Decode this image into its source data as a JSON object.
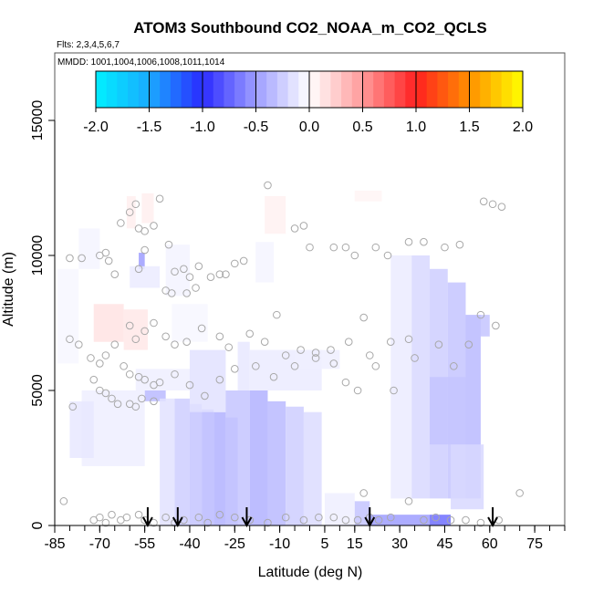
{
  "chart_data": {
    "type": "heatmap",
    "title": "ATOM3 Southbound CO2_NOAA_m_CO2_QCLS",
    "subtitle_flights": "Flts: 2,3,4,5,6,7",
    "subtitle_dates": "MMDD: 1001,1004,1006,1008,1011,1014",
    "xlabel": "Latitude (deg N)",
    "ylabel": "Altitude (m)",
    "xlim": [
      -85,
      85
    ],
    "ylim": [
      0,
      17500
    ],
    "x_ticks": [
      -85,
      -70,
      -55,
      -40,
      -25,
      -10,
      5,
      15,
      30,
      45,
      60,
      75
    ],
    "x_tick_labels": [
      "-85",
      "-70",
      "-55",
      "-40",
      "-25",
      "-10",
      "5",
      "15",
      "30",
      "45",
      "60",
      "75"
    ],
    "x_minor_step": 5,
    "y_ticks": [
      0,
      5000,
      10000,
      15000
    ],
    "y_tick_labels": [
      "0",
      "5000",
      "10000",
      "15000"
    ],
    "colorbar": {
      "range": [
        -2.0,
        2.0
      ],
      "ticks": [
        -2.0,
        -1.5,
        -1.0,
        -0.5,
        0.0,
        0.5,
        1.0,
        1.5,
        2.0
      ],
      "tick_labels": [
        "-2.0",
        "-1.5",
        "-1.0",
        "-0.5",
        "0.0",
        "0.5",
        "1.0",
        "1.5",
        "2.0"
      ],
      "stops": [
        {
          "v": -2.0,
          "color": "#00f0ff"
        },
        {
          "v": -1.5,
          "color": "#1aaaff"
        },
        {
          "v": -1.0,
          "color": "#2a2aff"
        },
        {
          "v": -0.5,
          "color": "#9d9dff"
        },
        {
          "v": 0.0,
          "color": "#ffffff"
        },
        {
          "v": 0.5,
          "color": "#ff9a9a"
        },
        {
          "v": 1.0,
          "color": "#ff2020"
        },
        {
          "v": 1.5,
          "color": "#ff9000"
        },
        {
          "v": 2.0,
          "color": "#ffff00"
        }
      ]
    },
    "cells": [
      {
        "lat0": -84,
        "lat1": -77,
        "alt0": 6000,
        "alt1": 9500,
        "v": -0.04
      },
      {
        "lat0": -77,
        "lat1": -70,
        "alt0": 9500,
        "alt1": 11000,
        "v": -0.05
      },
      {
        "lat0": -72,
        "lat1": -62,
        "alt0": 6800,
        "alt1": 8200,
        "v": 0.14
      },
      {
        "lat0": -61,
        "lat1": -58,
        "alt0": 11000,
        "alt1": 12200,
        "v": 0.08
      },
      {
        "lat0": -56,
        "lat1": -52,
        "alt0": 11200,
        "alt1": 12300,
        "v": 0.08
      },
      {
        "lat0": -57,
        "lat1": -55,
        "alt0": 9500,
        "alt1": 10100,
        "v": -0.5
      },
      {
        "lat0": -60,
        "lat1": -50,
        "alt0": 8800,
        "alt1": 9600,
        "v": -0.1
      },
      {
        "lat0": -62,
        "lat1": -54,
        "alt0": 6500,
        "alt1": 8000,
        "v": 0.12
      },
      {
        "lat0": -58,
        "lat1": -40,
        "alt0": 5000,
        "alt1": 5800,
        "v": -0.08
      },
      {
        "lat0": -55,
        "lat1": -48,
        "alt0": 4600,
        "alt1": 5000,
        "v": -0.35
      },
      {
        "lat0": -76,
        "lat1": -55,
        "alt0": 2200,
        "alt1": 5000,
        "v": -0.08
      },
      {
        "lat0": -80,
        "lat1": -72,
        "alt0": 2500,
        "alt1": 4600,
        "v": -0.12
      },
      {
        "lat0": -48,
        "lat1": -40,
        "alt0": 8500,
        "alt1": 10400,
        "v": -0.06
      },
      {
        "lat0": -46,
        "lat1": -34,
        "alt0": 6800,
        "alt1": 8200,
        "v": -0.04
      },
      {
        "lat0": -50,
        "lat1": -45,
        "alt0": 0,
        "alt1": 4700,
        "v": -0.15
      },
      {
        "lat0": -45,
        "lat1": -40,
        "alt0": 0,
        "alt1": 4700,
        "v": -0.25
      },
      {
        "lat0": -40,
        "lat1": -36,
        "alt0": 0,
        "alt1": 4500,
        "v": -0.3
      },
      {
        "lat0": -36,
        "lat1": -32,
        "alt0": 0,
        "alt1": 4300,
        "v": -0.35
      },
      {
        "lat0": -32,
        "lat1": -28,
        "alt0": 0,
        "alt1": 4200,
        "v": -0.4
      },
      {
        "lat0": -28,
        "lat1": -24,
        "alt0": 0,
        "alt1": 4000,
        "v": -0.35
      },
      {
        "lat0": -40,
        "lat1": -28,
        "alt0": 4200,
        "alt1": 6500,
        "v": -0.15
      },
      {
        "lat0": -28,
        "lat1": -20,
        "alt0": 0,
        "alt1": 5000,
        "v": -0.3
      },
      {
        "lat0": -24,
        "lat1": -20,
        "alt0": 5000,
        "alt1": 6800,
        "v": -0.12
      },
      {
        "lat0": -20,
        "lat1": -14,
        "alt0": 0,
        "alt1": 5000,
        "v": -0.4
      },
      {
        "lat0": -14,
        "lat1": -8,
        "alt0": 0,
        "alt1": 4600,
        "v": -0.35
      },
      {
        "lat0": -8,
        "lat1": -2,
        "alt0": 0,
        "alt1": 4400,
        "v": -0.25
      },
      {
        "lat0": -2,
        "lat1": 4,
        "alt0": 0,
        "alt1": 4200,
        "v": -0.18
      },
      {
        "lat0": -20,
        "lat1": 4,
        "alt0": 5000,
        "alt1": 6500,
        "v": -0.1
      },
      {
        "lat0": -5,
        "lat1": 10,
        "alt0": 5800,
        "alt1": 6500,
        "v": -0.08
      },
      {
        "lat0": -15,
        "lat1": -8,
        "alt0": 10800,
        "alt1": 12200,
        "v": 0.07
      },
      {
        "lat0": -18,
        "lat1": -12,
        "alt0": 9000,
        "alt1": 10500,
        "v": -0.05
      },
      {
        "lat0": 15,
        "lat1": 24,
        "alt0": 12000,
        "alt1": 12400,
        "v": 0.05
      },
      {
        "lat0": 5,
        "lat1": 15,
        "alt0": 0,
        "alt1": 1200,
        "v": -0.08
      },
      {
        "lat0": 15,
        "lat1": 20,
        "alt0": 0,
        "alt1": 900,
        "v": -0.3
      },
      {
        "lat0": 20,
        "lat1": 40,
        "alt0": 0,
        "alt1": 400,
        "v": -0.5
      },
      {
        "lat0": 40,
        "lat1": 47,
        "alt0": 0,
        "alt1": 400,
        "v": -0.7
      },
      {
        "lat0": 27,
        "lat1": 34,
        "alt0": 1000,
        "alt1": 10000,
        "v": -0.1
      },
      {
        "lat0": 34,
        "lat1": 40,
        "alt0": 1000,
        "alt1": 10000,
        "v": -0.2
      },
      {
        "lat0": 40,
        "lat1": 46,
        "alt0": 1000,
        "alt1": 9500,
        "v": -0.25
      },
      {
        "lat0": 46,
        "lat1": 52,
        "alt0": 1000,
        "alt1": 9000,
        "v": -0.3
      },
      {
        "lat0": 52,
        "lat1": 57,
        "alt0": 1000,
        "alt1": 7800,
        "v": -0.35
      },
      {
        "lat0": 56,
        "lat1": 60,
        "alt0": 7000,
        "alt1": 7800,
        "v": -0.3
      },
      {
        "lat0": 40,
        "lat1": 56,
        "alt0": 3000,
        "alt1": 5500,
        "v": -0.3
      },
      {
        "lat0": 47,
        "lat1": 58,
        "alt0": 600,
        "alt1": 3000,
        "v": -0.2
      }
    ],
    "samples": [
      [
        -80,
        9900
      ],
      [
        -76,
        9900
      ],
      [
        -70,
        10000
      ],
      [
        -68,
        10100
      ],
      [
        -67,
        9800
      ],
      [
        -65,
        9300
      ],
      [
        -63,
        11200
      ],
      [
        -60,
        11600
      ],
      [
        -58,
        11900
      ],
      [
        -57,
        11000
      ],
      [
        -55,
        10900
      ],
      [
        -52,
        11100
      ],
      [
        -50,
        12100
      ],
      [
        -47,
        10400
      ],
      [
        -45,
        9400
      ],
      [
        -42,
        9500
      ],
      [
        -40,
        9200
      ],
      [
        -38,
        8800
      ],
      [
        -37,
        9600
      ],
      [
        -33,
        9200
      ],
      [
        -30,
        9300
      ],
      [
        -28,
        9300
      ],
      [
        -25,
        9700
      ],
      [
        -22,
        9800
      ],
      [
        -14,
        12600
      ],
      [
        -5,
        11000
      ],
      [
        -2,
        11100
      ],
      [
        0,
        10300
      ],
      [
        -48,
        8700
      ],
      [
        -46,
        8600
      ],
      [
        -41,
        8600
      ],
      [
        -55,
        10200
      ],
      [
        -57,
        9500
      ],
      [
        -60,
        7400
      ],
      [
        -58,
        6900
      ],
      [
        -55,
        7200
      ],
      [
        -52,
        7500
      ],
      [
        -48,
        7000
      ],
      [
        -45,
        6700
      ],
      [
        -41,
        6800
      ],
      [
        -36,
        7300
      ],
      [
        -30,
        7000
      ],
      [
        -27,
        6600
      ],
      [
        -20,
        7100
      ],
      [
        -15,
        6800
      ],
      [
        -11,
        7800
      ],
      [
        -8,
        6300
      ],
      [
        -3,
        6500
      ],
      [
        2,
        6400
      ],
      [
        7,
        6500
      ],
      [
        13,
        6800
      ],
      [
        18,
        7700
      ],
      [
        20,
        6300
      ],
      [
        27,
        6800
      ],
      [
        33,
        6900
      ],
      [
        -80,
        6900
      ],
      [
        -77,
        6700
      ],
      [
        -73,
        6200
      ],
      [
        -70,
        6000
      ],
      [
        -68,
        6300
      ],
      [
        -65,
        6700
      ],
      [
        -62,
        5900
      ],
      [
        -60,
        5600
      ],
      [
        -57,
        5500
      ],
      [
        -55,
        5400
      ],
      [
        -52,
        5200
      ],
      [
        -50,
        5300
      ],
      [
        -45,
        5600
      ],
      [
        -40,
        5200
      ],
      [
        -35,
        4800
      ],
      [
        -30,
        5400
      ],
      [
        -25,
        5800
      ],
      [
        -18,
        5900
      ],
      [
        -12,
        5500
      ],
      [
        -5,
        5900
      ],
      [
        2,
        6200
      ],
      [
        8,
        6000
      ],
      [
        12,
        5300
      ],
      [
        16,
        5000
      ],
      [
        22,
        5900
      ],
      [
        28,
        5000
      ],
      [
        35,
        6200
      ],
      [
        43,
        6700
      ],
      [
        48,
        5900
      ],
      [
        53,
        6700
      ],
      [
        57,
        7800
      ],
      [
        62,
        7400
      ],
      [
        -72,
        5400
      ],
      [
        -70,
        5000
      ],
      [
        -68,
        4900
      ],
      [
        -66,
        4700
      ],
      [
        -64,
        4500
      ],
      [
        -60,
        4500
      ],
      [
        -58,
        4400
      ],
      [
        -56,
        4700
      ],
      [
        -52,
        4600
      ],
      [
        -79,
        4400
      ],
      [
        -82,
        900
      ],
      [
        -72,
        200
      ],
      [
        -70,
        300
      ],
      [
        -68,
        100
      ],
      [
        -66,
        400
      ],
      [
        -63,
        200
      ],
      [
        -61,
        300
      ],
      [
        -57,
        400
      ],
      [
        -55,
        200
      ],
      [
        -52,
        100
      ],
      [
        -48,
        300
      ],
      [
        -45,
        100
      ],
      [
        -42,
        200
      ],
      [
        -37,
        300
      ],
      [
        -34,
        100
      ],
      [
        -30,
        400
      ],
      [
        -25,
        300
      ],
      [
        -20,
        200
      ],
      [
        -14,
        100
      ],
      [
        -8,
        300
      ],
      [
        -2,
        200
      ],
      [
        3,
        300
      ],
      [
        8,
        300
      ],
      [
        12,
        200
      ],
      [
        16,
        200
      ],
      [
        18,
        1200
      ],
      [
        20,
        300
      ],
      [
        23,
        200
      ],
      [
        27,
        300
      ],
      [
        33,
        900
      ],
      [
        38,
        200
      ],
      [
        42,
        300
      ],
      [
        47,
        200
      ],
      [
        52,
        200
      ],
      [
        57,
        100
      ],
      [
        63,
        200
      ],
      [
        70,
        1200
      ],
      [
        22,
        10300
      ],
      [
        26,
        10000
      ],
      [
        33,
        10500
      ],
      [
        38,
        10500
      ],
      [
        45,
        10300
      ],
      [
        50,
        10400
      ],
      [
        58,
        12000
      ],
      [
        61,
        11900
      ],
      [
        64,
        11800
      ],
      [
        8,
        10300
      ],
      [
        12,
        10300
      ],
      [
        15,
        10000
      ]
    ],
    "arrows_lat": [
      -54,
      -44,
      -21,
      20,
      61
    ]
  }
}
